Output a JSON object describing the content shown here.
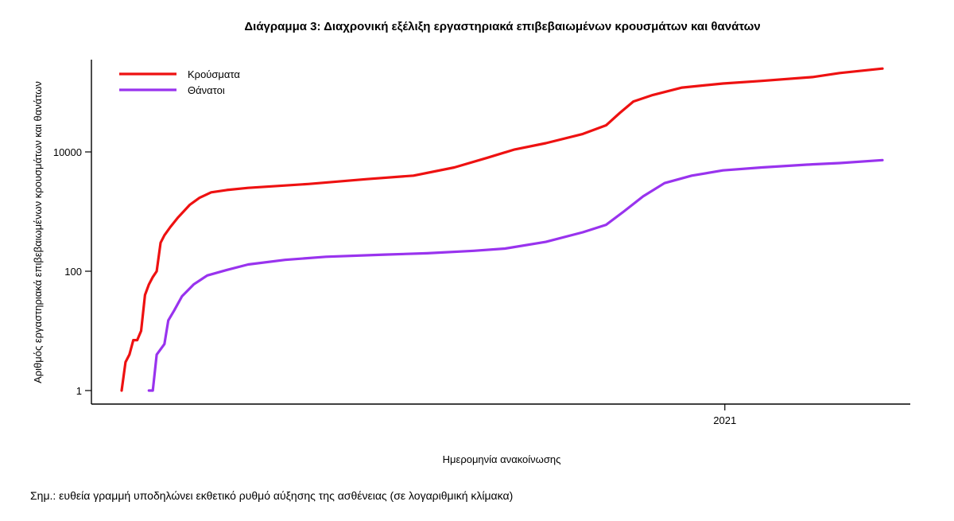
{
  "chart_data": {
    "type": "line",
    "title": "Διάγραμμα 3: Διαχρονική εξέλιξη εργαστηριακά επιβεβαιωμένων κρουσμάτων και θανάτων",
    "xlabel": "Ημερομηνία ανακοίνωσης",
    "ylabel": "Αριθμός εργαστηριακά επιβεβαιωμένων κρουσμάτων και θανάτων",
    "y_scale": "log",
    "ylim": [
      1,
      1000000
    ],
    "y_ticks": [
      1,
      100,
      10000
    ],
    "y_tick_labels": [
      "1",
      "100",
      "10000"
    ],
    "x_range": [
      "2020-02-26",
      "2021-03-23"
    ],
    "x_ticks": [
      "2021-01-01"
    ],
    "x_tick_labels": [
      "2021"
    ],
    "grid": false,
    "legend_position": "top-left",
    "series": [
      {
        "name": "Κρούσματα",
        "color": "#ee1111",
        "points": [
          [
            "2020-02-26",
            1
          ],
          [
            "2020-02-28",
            3
          ],
          [
            "2020-03-01",
            4
          ],
          [
            "2020-03-03",
            7
          ],
          [
            "2020-03-05",
            7
          ],
          [
            "2020-03-07",
            10
          ],
          [
            "2020-03-09",
            40
          ],
          [
            "2020-03-11",
            60
          ],
          [
            "2020-03-13",
            80
          ],
          [
            "2020-03-15",
            100
          ],
          [
            "2020-03-17",
            300
          ],
          [
            "2020-03-19",
            400
          ],
          [
            "2020-03-22",
            550
          ],
          [
            "2020-03-26",
            800
          ],
          [
            "2020-04-01",
            1300
          ],
          [
            "2020-04-06",
            1700
          ],
          [
            "2020-04-12",
            2100
          ],
          [
            "2020-04-20",
            2300
          ],
          [
            "2020-05-01",
            2500
          ],
          [
            "2020-06-01",
            2900
          ],
          [
            "2020-07-01",
            3500
          ],
          [
            "2020-07-25",
            4000
          ],
          [
            "2020-08-15",
            5500
          ],
          [
            "2020-09-01",
            8000
          ],
          [
            "2020-09-15",
            11000
          ],
          [
            "2020-10-01",
            14000
          ],
          [
            "2020-10-20",
            20000
          ],
          [
            "2020-11-01",
            28000
          ],
          [
            "2020-11-08",
            45000
          ],
          [
            "2020-11-15",
            70000
          ],
          [
            "2020-11-25",
            90000
          ],
          [
            "2020-12-10",
            120000
          ],
          [
            "2020-12-31",
            140000
          ],
          [
            "2021-01-20",
            155000
          ],
          [
            "2021-02-15",
            180000
          ],
          [
            "2021-03-01",
            210000
          ],
          [
            "2021-03-23",
            250000
          ]
        ]
      },
      {
        "name": "Θάνατοι",
        "color": "#9933ee",
        "points": [
          [
            "2020-03-11",
            1
          ],
          [
            "2020-03-13",
            1
          ],
          [
            "2020-03-15",
            4
          ],
          [
            "2020-03-19",
            6
          ],
          [
            "2020-03-21",
            15
          ],
          [
            "2020-03-24",
            22
          ],
          [
            "2020-03-28",
            38
          ],
          [
            "2020-04-03",
            60
          ],
          [
            "2020-04-10",
            85
          ],
          [
            "2020-04-20",
            105
          ],
          [
            "2020-05-01",
            130
          ],
          [
            "2020-05-20",
            155
          ],
          [
            "2020-06-10",
            175
          ],
          [
            "2020-07-10",
            190
          ],
          [
            "2020-08-01",
            200
          ],
          [
            "2020-08-25",
            220
          ],
          [
            "2020-09-10",
            240
          ],
          [
            "2020-10-01",
            310
          ],
          [
            "2020-10-20",
            450
          ],
          [
            "2020-11-01",
            600
          ],
          [
            "2020-11-10",
            1000
          ],
          [
            "2020-11-20",
            1800
          ],
          [
            "2020-12-01",
            3000
          ],
          [
            "2020-12-15",
            4000
          ],
          [
            "2020-12-31",
            4900
          ],
          [
            "2021-01-20",
            5500
          ],
          [
            "2021-02-15",
            6200
          ],
          [
            "2021-03-01",
            6500
          ],
          [
            "2021-03-23",
            7300
          ]
        ]
      }
    ]
  },
  "note": "Σημ.: ευθεία γραμμή υποδηλώνει εκθετικό ρυθμό αύξησης της ασθένειας (σε λογαριθμική κλίμακα)"
}
